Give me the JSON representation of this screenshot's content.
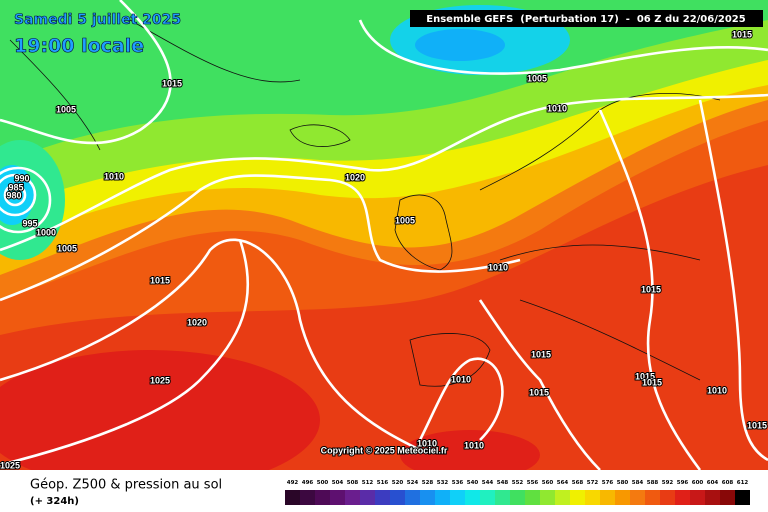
{
  "header": {
    "date": "Samedi 5 juillet 2025",
    "time": "19:00 locale",
    "run": "Ensemble GEFS  (Perturbation 17)  -  06 Z du 22/06/2025"
  },
  "isobar_labels": [
    "1015",
    "1005",
    "1010",
    "1015",
    "1005",
    "1010",
    "1020",
    "990",
    "985",
    "980",
    "995",
    "1000",
    "1005",
    "1005",
    "1010",
    "1015",
    "1015",
    "1020",
    "1015",
    "1025",
    "1010",
    "1015",
    "1015",
    "1015",
    "1010",
    "1015",
    "1010",
    "1010",
    "1025"
  ],
  "copyright": "Copyright © 2025 Meteociel.fr",
  "footer": {
    "title": "Géop. Z500 & pression au sol",
    "lead": "(+ 324h)"
  },
  "scale": {
    "values": [
      492,
      496,
      500,
      504,
      508,
      512,
      516,
      520,
      524,
      528,
      532,
      536,
      540,
      544,
      548,
      552,
      556,
      560,
      564,
      568,
      572,
      576,
      580,
      584,
      588,
      592,
      596,
      600,
      604,
      608,
      612
    ],
    "colors": [
      "#2a0628",
      "#3c0840",
      "#4e0a56",
      "#5e1070",
      "#6a1e8e",
      "#5a2ca8",
      "#3c3cc0",
      "#2850d0",
      "#2070e0",
      "#1890f0",
      "#10b0f8",
      "#10d0f8",
      "#10e8e8",
      "#20f0c0",
      "#30e890",
      "#40e060",
      "#60e040",
      "#90e830",
      "#c0f020",
      "#f0f000",
      "#f8d800",
      "#f8b800",
      "#f89800",
      "#f47a10",
      "#f05a10",
      "#e83c14",
      "#e02018",
      "#c81818",
      "#a81010",
      "#880808",
      "#000000"
    ]
  }
}
